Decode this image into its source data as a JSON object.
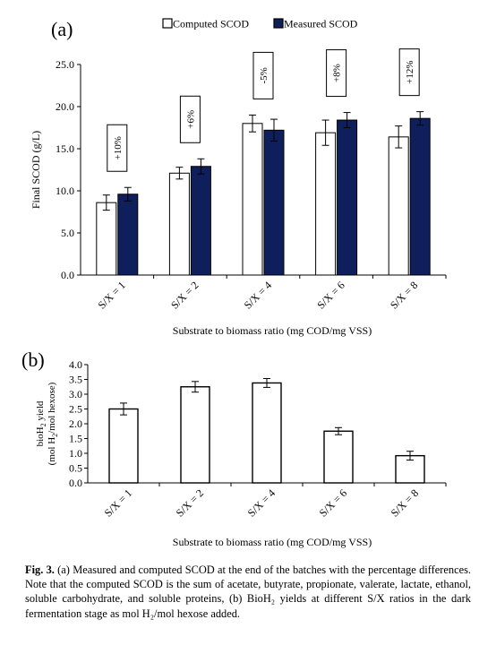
{
  "panels": [
    {
      "tag": "(a)",
      "chart_data": {
        "type": "bar",
        "categories": [
          "S/X = 1",
          "S/X = 2",
          "S/X = 4",
          "S/X = 6",
          "S/X = 8"
        ],
        "series": [
          {
            "name": "Computed SCOD",
            "values": [
              8.6,
              12.1,
              18.0,
              16.9,
              16.4
            ],
            "errors": [
              0.9,
              0.7,
              1.0,
              1.5,
              1.3
            ],
            "color": "#ffffff"
          },
          {
            "name": "Measured SCOD",
            "values": [
              9.6,
              12.9,
              17.2,
              18.4,
              18.6
            ],
            "errors": [
              0.8,
              0.9,
              1.3,
              0.9,
              0.8
            ],
            "color": "#0f1f5c"
          }
        ],
        "annotations": [
          "+10%",
          "+6%",
          "-5%",
          "+8%",
          "+12%"
        ],
        "ylabel": "Final SCOD (g/L)",
        "xlabel": "Substrate to biomass ratio (mg COD/mg VSS)",
        "ylim": [
          0,
          25
        ],
        "yticks": [
          "0.0",
          "5.0",
          "10.0",
          "15.0",
          "20.0",
          "25.0"
        ],
        "legend_position": "top",
        "grid": false
      }
    },
    {
      "tag": "(b)",
      "chart_data": {
        "type": "bar",
        "categories": [
          "S/X = 1",
          "S/X = 2",
          "S/X = 4",
          "S/X = 6",
          "S/X = 8"
        ],
        "values": [
          2.5,
          3.25,
          3.38,
          1.75,
          0.92
        ],
        "errors": [
          0.2,
          0.18,
          0.15,
          0.12,
          0.15
        ],
        "ylabel": "bioH2 yield (mol H2/mol hexose)",
        "xlabel": "Substrate to biomass ratio (mg COD/mg VSS)",
        "ylim": [
          0,
          4
        ],
        "yticks": [
          "0.0",
          "0.5",
          "1.0",
          "1.5",
          "2.0",
          "2.5",
          "3.0",
          "3.5",
          "4.0"
        ],
        "grid": false
      }
    }
  ],
  "caption": {
    "label": "Fig. 3.",
    "text": " (a) Measured and computed SCOD at the end of the batches with the percentage differences. Note that the computed SCOD is the sum of acetate, butyrate, propionate, valerate, lactate, ethanol, soluble carbohydrate, and soluble proteins, (b) BioH₂ yields at different S/X ratios in the dark fermentation stage as mol H₂/mol hexose added."
  }
}
